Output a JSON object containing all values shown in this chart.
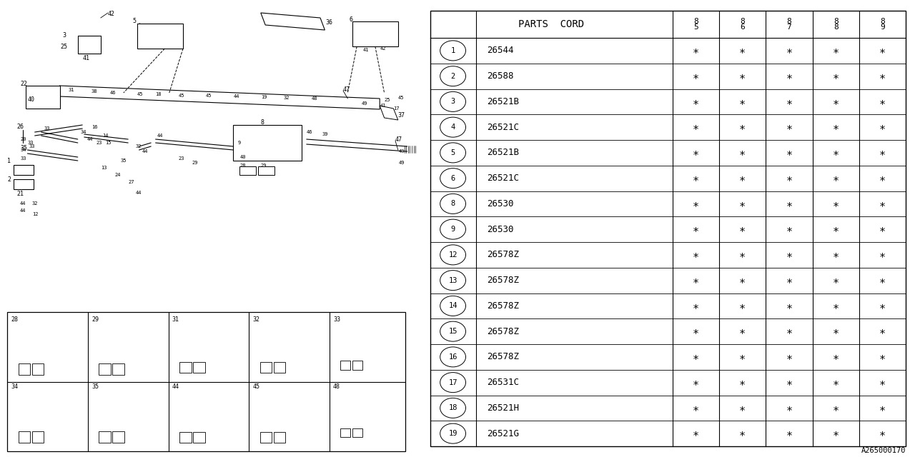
{
  "bg_color": "#ffffff",
  "line_color": "#000000",
  "footnote": "A265000170",
  "col_headers": [
    "8\n5",
    "8\n6",
    "8\n7",
    "8\n8",
    "8\n9"
  ],
  "parts": [
    {
      "num": "1",
      "code": "26544"
    },
    {
      "num": "2",
      "code": "26588"
    },
    {
      "num": "3",
      "code": "26521B"
    },
    {
      "num": "4",
      "code": "26521C"
    },
    {
      "num": "5",
      "code": "26521B"
    },
    {
      "num": "6",
      "code": "26521C"
    },
    {
      "num": "8",
      "code": "26530"
    },
    {
      "num": "9",
      "code": "26530"
    },
    {
      "num": "12",
      "code": "26578Z"
    },
    {
      "num": "13",
      "code": "26578Z"
    },
    {
      "num": "14",
      "code": "26578Z"
    },
    {
      "num": "15",
      "code": "26578Z"
    },
    {
      "num": "16",
      "code": "26578Z"
    },
    {
      "num": "17",
      "code": "26531C"
    },
    {
      "num": "18",
      "code": "26521H"
    },
    {
      "num": "19",
      "code": "26521G"
    }
  ]
}
